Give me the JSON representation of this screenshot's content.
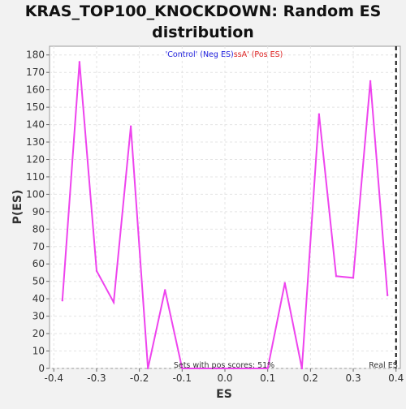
{
  "chart_data": {
    "type": "line",
    "title_lines": [
      "KRAS_TOP100_KNOCKDOWN: Random ES",
      "distribution"
    ],
    "xlabel": "ES",
    "ylabel": "P(ES)",
    "xlim": [
      -0.41,
      0.41
    ],
    "ylim": [
      0,
      185
    ],
    "xticks": [
      -0.4,
      -0.3,
      -0.2,
      -0.1,
      0.0,
      0.1,
      0.2,
      0.3,
      0.4
    ],
    "xtick_labels": [
      "-0.4",
      "-0.3",
      "-0.2",
      "-0.1",
      "0.0",
      "0.1",
      "0.2",
      "0.3",
      "0.4"
    ],
    "yticks": [
      0,
      10,
      20,
      30,
      40,
      50,
      60,
      70,
      80,
      90,
      100,
      110,
      120,
      130,
      140,
      150,
      160,
      170,
      180
    ],
    "grid": true,
    "series": [
      {
        "color": "#ee44ee",
        "x": [
          -0.38,
          -0.34,
          -0.3,
          -0.26,
          -0.22,
          -0.18,
          -0.14,
          -0.1,
          -0.06,
          -0.02,
          0.02,
          0.06,
          0.1,
          0.14,
          0.18,
          0.22,
          0.26,
          0.3,
          0.34,
          0.38
        ],
        "y": [
          39,
          176,
          56,
          38,
          139,
          0,
          45,
          0,
          0,
          0,
          0,
          0,
          0,
          49,
          0,
          146,
          53,
          52,
          165,
          42
        ]
      }
    ],
    "real_es": 0.4,
    "real_es_label": "Real ES",
    "annotation_control": "'Control' (Neg ES)",
    "annotation_class": "ssA' (Pos ES)",
    "annotation_control_color": "#2222dd",
    "annotation_class_color": "#dd2222",
    "pos_scores_text": "Sets with pos scores: 51%"
  }
}
